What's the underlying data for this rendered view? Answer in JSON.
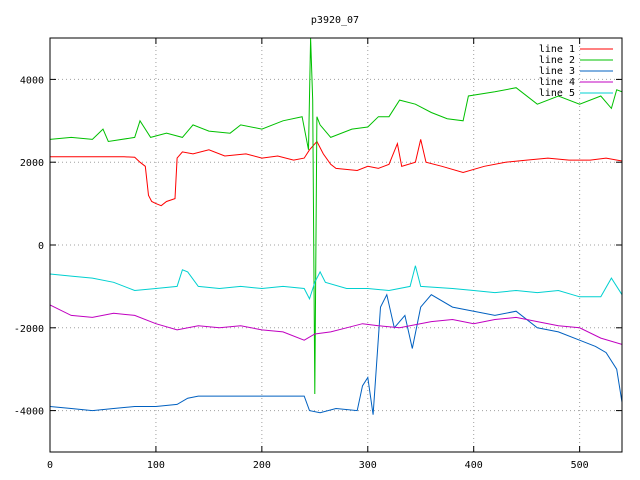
{
  "chart_data": {
    "type": "line",
    "title": "p3920_07",
    "xlabel": "",
    "ylabel": "",
    "xlim": [
      0,
      540
    ],
    "ylim": [
      -5000,
      5000
    ],
    "xticks": [
      0,
      100,
      200,
      300,
      400,
      500
    ],
    "yticks": [
      -4000,
      -2000,
      0,
      2000,
      4000
    ],
    "grid": true,
    "legend_position": "top-right",
    "series": [
      {
        "name": "line 1",
        "color": "#ff0000",
        "points": [
          [
            0,
            2130
          ],
          [
            60,
            2130
          ],
          [
            70,
            2130
          ],
          [
            80,
            2120
          ],
          [
            85,
            2000
          ],
          [
            90,
            1900
          ],
          [
            93,
            1200
          ],
          [
            96,
            1050
          ],
          [
            100,
            1000
          ],
          [
            105,
            950
          ],
          [
            110,
            1050
          ],
          [
            118,
            1120
          ],
          [
            120,
            2100
          ],
          [
            125,
            2250
          ],
          [
            135,
            2200
          ],
          [
            150,
            2300
          ],
          [
            165,
            2150
          ],
          [
            185,
            2200
          ],
          [
            200,
            2100
          ],
          [
            215,
            2150
          ],
          [
            230,
            2050
          ],
          [
            240,
            2100
          ],
          [
            245,
            2300
          ],
          [
            252,
            2500
          ],
          [
            258,
            2200
          ],
          [
            265,
            1950
          ],
          [
            270,
            1850
          ],
          [
            290,
            1800
          ],
          [
            300,
            1900
          ],
          [
            310,
            1850
          ],
          [
            320,
            1950
          ],
          [
            328,
            2450
          ],
          [
            332,
            1900
          ],
          [
            345,
            2000
          ],
          [
            350,
            2550
          ],
          [
            355,
            2000
          ],
          [
            370,
            1900
          ],
          [
            390,
            1750
          ],
          [
            410,
            1900
          ],
          [
            430,
            2000
          ],
          [
            450,
            2050
          ],
          [
            470,
            2100
          ],
          [
            490,
            2050
          ],
          [
            510,
            2050
          ],
          [
            525,
            2100
          ],
          [
            540,
            2030
          ]
        ]
      },
      {
        "name": "line 2",
        "color": "#00c000",
        "points": [
          [
            0,
            2550
          ],
          [
            20,
            2600
          ],
          [
            40,
            2550
          ],
          [
            50,
            2800
          ],
          [
            55,
            2500
          ],
          [
            80,
            2600
          ],
          [
            85,
            3000
          ],
          [
            95,
            2600
          ],
          [
            110,
            2700
          ],
          [
            125,
            2600
          ],
          [
            135,
            2900
          ],
          [
            150,
            2750
          ],
          [
            170,
            2700
          ],
          [
            180,
            2900
          ],
          [
            200,
            2800
          ],
          [
            220,
            3000
          ],
          [
            238,
            3100
          ],
          [
            244,
            2300
          ],
          [
            246,
            5000
          ],
          [
            248,
            3500
          ],
          [
            250,
            -3600
          ],
          [
            252,
            3100
          ],
          [
            255,
            2900
          ],
          [
            265,
            2600
          ],
          [
            285,
            2800
          ],
          [
            300,
            2850
          ],
          [
            310,
            3100
          ],
          [
            320,
            3100
          ],
          [
            330,
            3500
          ],
          [
            345,
            3400
          ],
          [
            360,
            3200
          ],
          [
            375,
            3050
          ],
          [
            390,
            3000
          ],
          [
            395,
            3600
          ],
          [
            420,
            3700
          ],
          [
            440,
            3800
          ],
          [
            460,
            3400
          ],
          [
            480,
            3600
          ],
          [
            500,
            3400
          ],
          [
            520,
            3600
          ],
          [
            530,
            3300
          ],
          [
            535,
            3750
          ],
          [
            540,
            3700
          ]
        ]
      },
      {
        "name": "line 3",
        "color": "#0060c0",
        "points": [
          [
            0,
            -3900
          ],
          [
            20,
            -3950
          ],
          [
            40,
            -4000
          ],
          [
            60,
            -3950
          ],
          [
            80,
            -3900
          ],
          [
            100,
            -3900
          ],
          [
            120,
            -3850
          ],
          [
            130,
            -3700
          ],
          [
            140,
            -3650
          ],
          [
            200,
            -3650
          ],
          [
            240,
            -3650
          ],
          [
            245,
            -4000
          ],
          [
            255,
            -4050
          ],
          [
            270,
            -3950
          ],
          [
            290,
            -4000
          ],
          [
            295,
            -3400
          ],
          [
            300,
            -3200
          ],
          [
            305,
            -4100
          ],
          [
            312,
            -1500
          ],
          [
            318,
            -1200
          ],
          [
            325,
            -2000
          ],
          [
            335,
            -1700
          ],
          [
            342,
            -2500
          ],
          [
            350,
            -1500
          ],
          [
            360,
            -1200
          ],
          [
            380,
            -1500
          ],
          [
            400,
            -1600
          ],
          [
            420,
            -1700
          ],
          [
            440,
            -1600
          ],
          [
            460,
            -2000
          ],
          [
            480,
            -2100
          ],
          [
            500,
            -2300
          ],
          [
            515,
            -2450
          ],
          [
            525,
            -2600
          ],
          [
            535,
            -3000
          ],
          [
            540,
            -3800
          ]
        ]
      },
      {
        "name": "line 4",
        "color": "#c000c0",
        "points": [
          [
            0,
            -1450
          ],
          [
            20,
            -1700
          ],
          [
            40,
            -1750
          ],
          [
            60,
            -1650
          ],
          [
            80,
            -1700
          ],
          [
            100,
            -1900
          ],
          [
            120,
            -2050
          ],
          [
            140,
            -1950
          ],
          [
            160,
            -2000
          ],
          [
            180,
            -1950
          ],
          [
            200,
            -2050
          ],
          [
            220,
            -2100
          ],
          [
            240,
            -2300
          ],
          [
            250,
            -2150
          ],
          [
            265,
            -2100
          ],
          [
            280,
            -2000
          ],
          [
            295,
            -1900
          ],
          [
            310,
            -1950
          ],
          [
            330,
            -2000
          ],
          [
            360,
            -1850
          ],
          [
            380,
            -1800
          ],
          [
            400,
            -1900
          ],
          [
            420,
            -1800
          ],
          [
            440,
            -1750
          ],
          [
            460,
            -1850
          ],
          [
            480,
            -1950
          ],
          [
            500,
            -2000
          ],
          [
            520,
            -2250
          ],
          [
            540,
            -2400
          ]
        ]
      },
      {
        "name": "line 5",
        "color": "#00d0d0",
        "points": [
          [
            0,
            -700
          ],
          [
            20,
            -750
          ],
          [
            40,
            -800
          ],
          [
            60,
            -900
          ],
          [
            80,
            -1100
          ],
          [
            100,
            -1050
          ],
          [
            120,
            -1000
          ],
          [
            125,
            -600
          ],
          [
            130,
            -650
          ],
          [
            140,
            -1000
          ],
          [
            160,
            -1050
          ],
          [
            180,
            -1000
          ],
          [
            200,
            -1050
          ],
          [
            220,
            -1000
          ],
          [
            240,
            -1050
          ],
          [
            245,
            -1300
          ],
          [
            250,
            -900
          ],
          [
            255,
            -650
          ],
          [
            260,
            -900
          ],
          [
            280,
            -1050
          ],
          [
            300,
            -1050
          ],
          [
            320,
            -1100
          ],
          [
            340,
            -1000
          ],
          [
            345,
            -500
          ],
          [
            350,
            -1000
          ],
          [
            380,
            -1050
          ],
          [
            400,
            -1100
          ],
          [
            420,
            -1150
          ],
          [
            440,
            -1100
          ],
          [
            460,
            -1150
          ],
          [
            480,
            -1100
          ],
          [
            500,
            -1250
          ],
          [
            520,
            -1250
          ],
          [
            530,
            -800
          ],
          [
            540,
            -1200
          ]
        ]
      }
    ]
  }
}
